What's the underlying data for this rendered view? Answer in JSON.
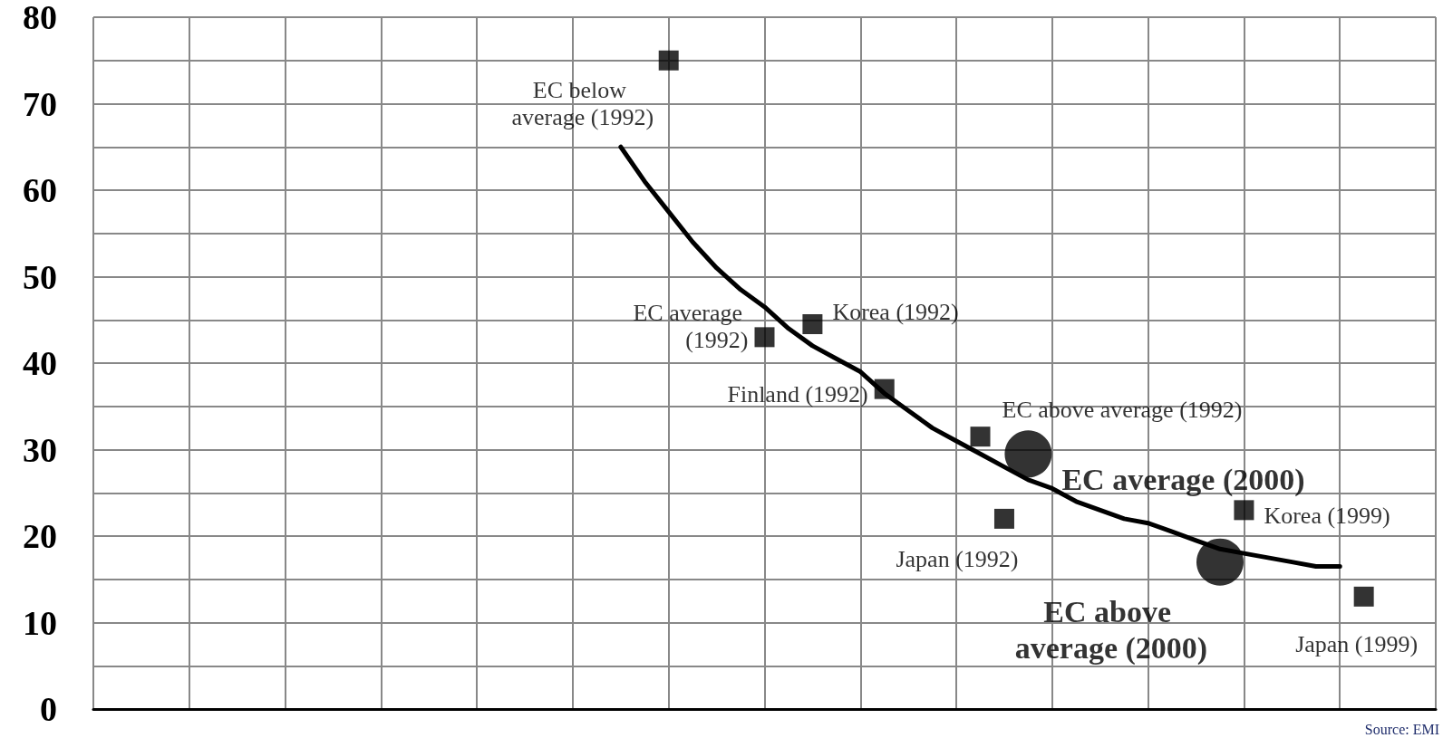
{
  "chart_data": {
    "type": "scatter",
    "categories": [
      null,
      null,
      null,
      null,
      null,
      null,
      null,
      null,
      null,
      null,
      null,
      null,
      null,
      null,
      null,
      null,
      null,
      null,
      null,
      null,
      null,
      null,
      null,
      null,
      null,
      null,
      null,
      null,
      null,
      null,
      null,
      null,
      null,
      null,
      null,
      null,
      null,
      null,
      null,
      null,
      null,
      null,
      null,
      null,
      null,
      null,
      null,
      null,
      null,
      null,
      null,
      null,
      null,
      null,
      null,
      null,
      null
    ],
    "series": [
      {
        "name": "EC below average (1992)",
        "color": "#000000",
        "marker": "square",
        "values": [
          null,
          null,
          null,
          null,
          null,
          null,
          null,
          null,
          null,
          null,
          null,
          null,
          null,
          null,
          null,
          null,
          null,
          null,
          null,
          null,
          null,
          null,
          null,
          null,
          75,
          null,
          null,
          null,
          null,
          null,
          null,
          null,
          null,
          null,
          null,
          null,
          null,
          null,
          null,
          null,
          null,
          null,
          null,
          null,
          null,
          null,
          null,
          null,
          null,
          null,
          null,
          null,
          null,
          null,
          null,
          null,
          null
        ]
      },
      {
        "name": "EC average (1992)",
        "color": "#000000",
        "marker": "square",
        "values": [
          null,
          null,
          null,
          null,
          null,
          null,
          null,
          null,
          null,
          null,
          null,
          null,
          null,
          null,
          null,
          null,
          null,
          null,
          null,
          null,
          null,
          null,
          null,
          null,
          null,
          null,
          null,
          null,
          43,
          null,
          null,
          null,
          null,
          null,
          null,
          null,
          null,
          null,
          null,
          null,
          null,
          null,
          null,
          null,
          null,
          null,
          null,
          null,
          null,
          null,
          null,
          null,
          null,
          null,
          null,
          null,
          null
        ]
      },
      {
        "name": "Korea (1992)",
        "color": "#000000",
        "marker": "square",
        "values": [
          null,
          null,
          null,
          null,
          null,
          null,
          null,
          null,
          null,
          null,
          null,
          null,
          null,
          null,
          null,
          null,
          null,
          null,
          null,
          null,
          null,
          null,
          null,
          null,
          null,
          null,
          null,
          null,
          null,
          null,
          44.5,
          null,
          null,
          null,
          null,
          null,
          null,
          null,
          null,
          null,
          null,
          null,
          null,
          null,
          null,
          null,
          null,
          null,
          null,
          null,
          null,
          null,
          null,
          null,
          null,
          null,
          null
        ]
      },
      {
        "name": "Finland (1992)",
        "color": "#000000",
        "marker": "square",
        "values": [
          null,
          null,
          null,
          null,
          null,
          null,
          null,
          null,
          null,
          null,
          null,
          null,
          null,
          null,
          null,
          null,
          null,
          null,
          null,
          null,
          null,
          null,
          null,
          null,
          null,
          null,
          null,
          null,
          null,
          null,
          null,
          null,
          null,
          37,
          null,
          null,
          null,
          null,
          null,
          null,
          null,
          null,
          null,
          null,
          null,
          null,
          null,
          null,
          null,
          null,
          null,
          null,
          null,
          null,
          null,
          null,
          null
        ]
      },
      {
        "name": "EC above average (1992)",
        "color": "#000000",
        "marker": "square",
        "values": [
          null,
          null,
          null,
          null,
          null,
          null,
          null,
          null,
          null,
          null,
          null,
          null,
          null,
          null,
          null,
          null,
          null,
          null,
          null,
          null,
          null,
          null,
          null,
          null,
          null,
          null,
          null,
          null,
          null,
          null,
          null,
          null,
          null,
          null,
          null,
          null,
          null,
          31.5,
          null,
          null,
          null,
          null,
          null,
          null,
          null,
          null,
          null,
          null,
          null,
          null,
          null,
          null,
          null,
          null,
          null,
          null,
          null
        ]
      },
      {
        "name": "Japan (1992)",
        "color": "#000000",
        "marker": "square",
        "values": [
          null,
          null,
          null,
          null,
          null,
          null,
          null,
          null,
          null,
          null,
          null,
          null,
          null,
          null,
          null,
          null,
          null,
          null,
          null,
          null,
          null,
          null,
          null,
          null,
          null,
          null,
          null,
          null,
          null,
          null,
          null,
          null,
          null,
          null,
          null,
          null,
          null,
          null,
          22,
          null,
          null,
          null,
          null,
          null,
          null,
          null,
          null,
          null,
          null,
          null,
          null,
          null,
          null,
          null,
          null,
          null,
          null
        ]
      },
      {
        "name": "EC average (2000)",
        "color": "#000000",
        "marker": "circle",
        "values": [
          null,
          null,
          null,
          null,
          null,
          null,
          null,
          null,
          null,
          null,
          null,
          null,
          null,
          null,
          null,
          null,
          null,
          null,
          null,
          null,
          null,
          null,
          null,
          null,
          null,
          null,
          null,
          null,
          null,
          null,
          null,
          null,
          null,
          null,
          null,
          null,
          null,
          null,
          null,
          29.5,
          null,
          null,
          null,
          null,
          null,
          null,
          null,
          null,
          null,
          null,
          null,
          null,
          null,
          null,
          null,
          null,
          null
        ]
      },
      {
        "name": "EC above average (2000)",
        "color": "#000000",
        "marker": "circle",
        "values": [
          null,
          null,
          null,
          null,
          null,
          null,
          null,
          null,
          null,
          null,
          null,
          null,
          null,
          null,
          null,
          null,
          null,
          null,
          null,
          null,
          null,
          null,
          null,
          null,
          null,
          null,
          null,
          null,
          null,
          null,
          null,
          null,
          null,
          null,
          null,
          null,
          null,
          null,
          null,
          null,
          null,
          null,
          null,
          null,
          null,
          null,
          null,
          17,
          null,
          null,
          null,
          null,
          null,
          null,
          null,
          null,
          null
        ]
      },
      {
        "name": "Korea (1999)",
        "color": "#000000",
        "marker": "square",
        "values": [
          null,
          null,
          null,
          null,
          null,
          null,
          null,
          null,
          null,
          null,
          null,
          null,
          null,
          null,
          null,
          null,
          null,
          null,
          null,
          null,
          null,
          null,
          null,
          null,
          null,
          null,
          null,
          null,
          null,
          null,
          null,
          null,
          null,
          null,
          null,
          null,
          null,
          null,
          null,
          null,
          null,
          null,
          null,
          null,
          null,
          null,
          null,
          null,
          23,
          null,
          null,
          null,
          null,
          null,
          null,
          null,
          null
        ]
      },
      {
        "name": "Japan (1999)",
        "color": "#000000",
        "marker": "square",
        "values": [
          null,
          null,
          null,
          null,
          null,
          null,
          null,
          null,
          null,
          null,
          null,
          null,
          null,
          null,
          null,
          null,
          null,
          null,
          null,
          null,
          null,
          null,
          null,
          null,
          null,
          null,
          null,
          null,
          null,
          null,
          null,
          null,
          null,
          null,
          null,
          null,
          null,
          null,
          null,
          null,
          null,
          null,
          null,
          null,
          null,
          null,
          null,
          null,
          null,
          null,
          null,
          null,
          null,
          13,
          null,
          null,
          null
        ]
      },
      {
        "type": "line",
        "color": "#000000",
        "marker": "none",
        "values": [
          null,
          null,
          null,
          null,
          null,
          null,
          null,
          null,
          null,
          null,
          null,
          null,
          null,
          null,
          null,
          null,
          null,
          null,
          null,
          null,
          null,
          null,
          65,
          61,
          57.5,
          54,
          51,
          48.5,
          46.5,
          44,
          42,
          40.5,
          39,
          36.5,
          34.5,
          32.5,
          31,
          29.5,
          28,
          26.5,
          25.5,
          24,
          23,
          22,
          21.5,
          20.5,
          19.5,
          18.5,
          18,
          17.5,
          17,
          16.5,
          16.5,
          null,
          null,
          null,
          null
        ]
      }
    ],
    "ylim": [
      0,
      80
    ],
    "yticks": [
      0,
      {
        "value": 5,
        "label": null
      },
      10,
      {
        "value": 15,
        "label": null
      },
      20,
      {
        "value": 25,
        "label": null
      },
      30,
      {
        "value": 35,
        "label": null
      },
      40,
      {
        "value": 45,
        "label": null
      },
      50,
      {
        "value": 55,
        "label": null
      },
      60,
      {
        "value": 65,
        "label": null
      },
      70,
      {
        "value": 75,
        "label": null
      },
      80
    ],
    "grid": true,
    "legend": false,
    "tick_labels": "y",
    "annotations": [
      "Source: EMI"
    ]
  }
}
